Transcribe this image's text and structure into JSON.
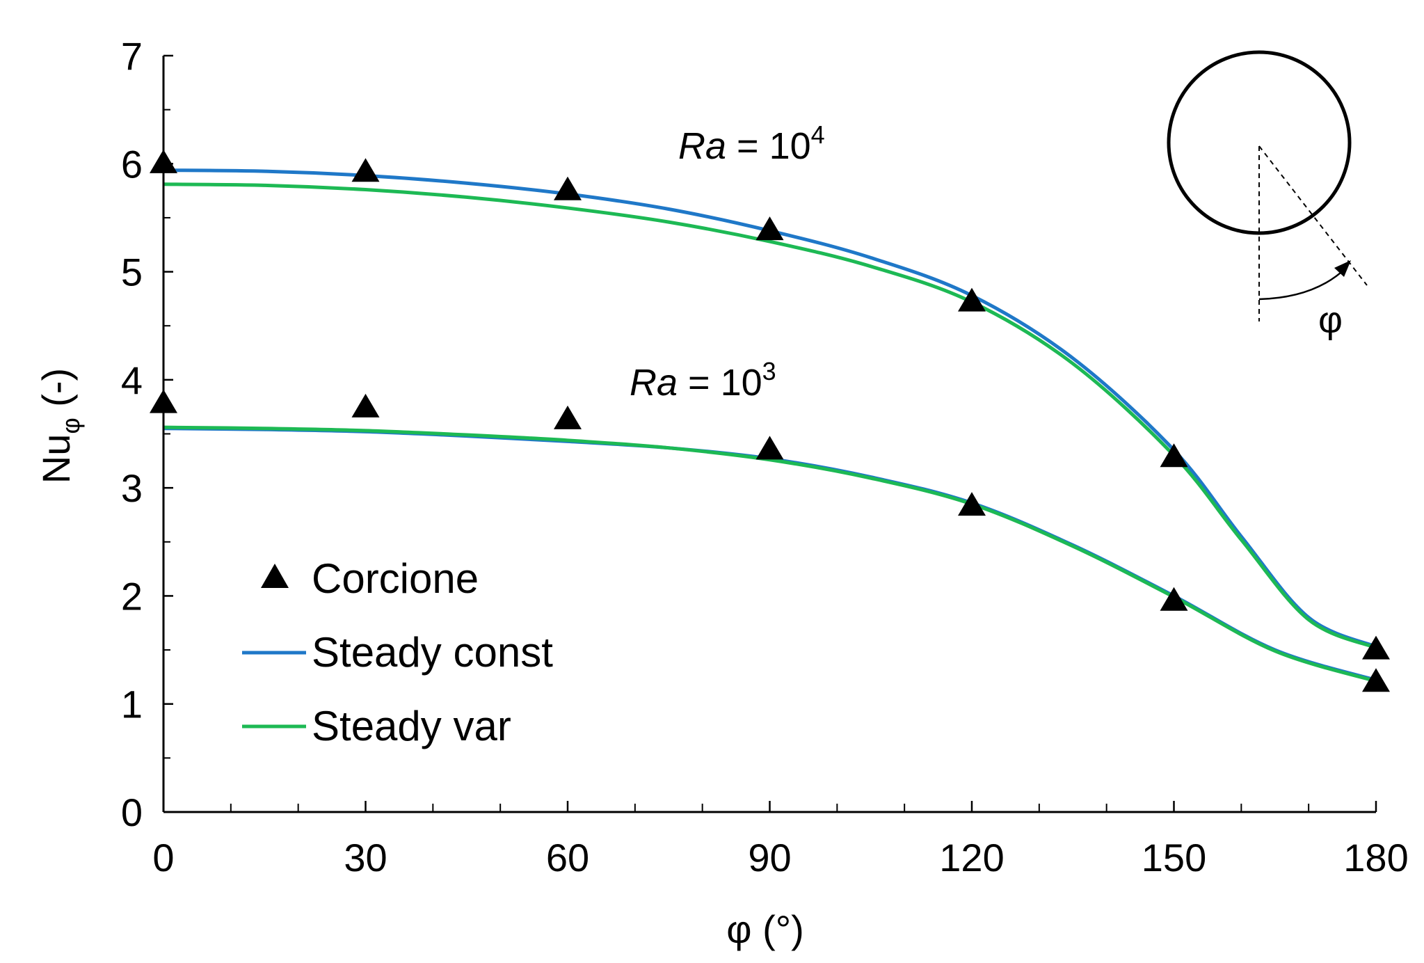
{
  "chart_data": {
    "type": "line",
    "title": "",
    "xlabel": "φ (°)",
    "ylabel_main": "Nu",
    "ylabel_sub": "φ",
    "ylabel_suffix": " (-)",
    "xlim": [
      0,
      180
    ],
    "ylim": [
      0,
      7
    ],
    "x_ticks": [
      "0",
      "30",
      "60",
      "90",
      "120",
      "150",
      "180"
    ],
    "x_tick_values": [
      0,
      30,
      60,
      90,
      120,
      150,
      180
    ],
    "y_ticks": [
      "0",
      "1",
      "2",
      "3",
      "4",
      "5",
      "6",
      "7"
    ],
    "y_tick_values": [
      0,
      1,
      2,
      3,
      4,
      5,
      6,
      7
    ],
    "grid": false,
    "legend_position": "lower-left",
    "legend": {
      "corcione": "Corcione",
      "steady_const": "Steady const",
      "steady_var": "Steady var"
    },
    "colors": {
      "steady_const": "#1f78c8",
      "steady_var": "#1db954",
      "markers": "#000000"
    },
    "annotations": [
      {
        "id": "ra4",
        "prefix": "Ra",
        "mid": " = 10",
        "exp": "4",
        "x": 90,
        "y": 6.05
      },
      {
        "id": "ra3",
        "prefix": "Ra",
        "mid": " = 10",
        "exp": "3",
        "x": 85,
        "y": 3.95
      }
    ],
    "inset_label": "φ",
    "series": [
      {
        "name": "Corcione",
        "case": "Ra = 10^4",
        "kind": "marker",
        "x": [
          0,
          30,
          60,
          90,
          120,
          150,
          180
        ],
        "y": [
          6.0,
          5.92,
          5.75,
          5.38,
          4.72,
          3.28,
          1.5
        ]
      },
      {
        "name": "Corcione",
        "case": "Ra = 10^3",
        "kind": "marker",
        "x": [
          0,
          30,
          60,
          90,
          120,
          150,
          180
        ],
        "y": [
          3.78,
          3.74,
          3.63,
          3.35,
          2.83,
          1.95,
          1.2
        ]
      },
      {
        "name": "Steady const",
        "case": "Ra = 10^4",
        "kind": "line",
        "x": [
          0,
          15,
          30,
          45,
          60,
          75,
          90,
          105,
          120,
          135,
          150,
          160,
          170,
          180
        ],
        "y": [
          5.94,
          5.93,
          5.89,
          5.82,
          5.72,
          5.58,
          5.38,
          5.13,
          4.78,
          4.2,
          3.35,
          2.55,
          1.8,
          1.53
        ]
      },
      {
        "name": "Steady var",
        "case": "Ra = 10^4",
        "kind": "line",
        "x": [
          0,
          15,
          30,
          45,
          60,
          75,
          90,
          105,
          120,
          135,
          150,
          160,
          170,
          180
        ],
        "y": [
          5.81,
          5.8,
          5.76,
          5.69,
          5.59,
          5.46,
          5.28,
          5.05,
          4.72,
          4.15,
          3.3,
          2.52,
          1.78,
          1.52
        ]
      },
      {
        "name": "Steady const",
        "case": "Ra = 10^3",
        "kind": "line",
        "x": [
          0,
          15,
          30,
          45,
          60,
          75,
          90,
          105,
          120,
          135,
          150,
          165,
          180
        ],
        "y": [
          3.55,
          3.54,
          3.52,
          3.48,
          3.43,
          3.37,
          3.27,
          3.1,
          2.86,
          2.47,
          2.0,
          1.5,
          1.22
        ]
      },
      {
        "name": "Steady var",
        "case": "Ra = 10^3",
        "kind": "line",
        "x": [
          0,
          15,
          30,
          45,
          60,
          75,
          90,
          105,
          120,
          135,
          150,
          165,
          180
        ],
        "y": [
          3.56,
          3.55,
          3.53,
          3.49,
          3.44,
          3.37,
          3.26,
          3.09,
          2.85,
          2.46,
          1.99,
          1.49,
          1.21
        ]
      }
    ]
  }
}
